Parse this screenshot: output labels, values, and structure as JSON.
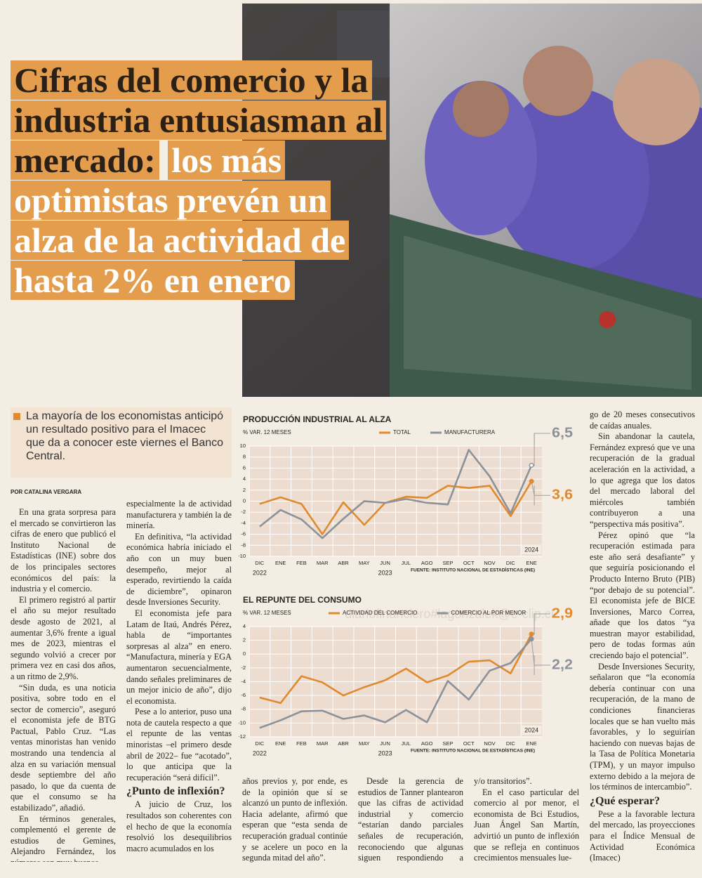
{
  "headline": {
    "part1": "Cifras del comercio y la industria entusiasman al mercado:",
    "part2": "los más optimistas prevén un alza de la actividad de hasta 2% en enero"
  },
  "lead": "La mayoría de los economistas anticipó un resultado positivo para el Imacec que da a conocer este viernes el Banco Central.",
  "byline": "POR CATALINA VERGARA",
  "watermark": "diariofinanciero#lagonzalek@e-clip.cl",
  "article": {
    "columns": [
      [
        {
          "p": "En una grata sorpresa para el mercado se convirtieron las cifras de enero que publicó el Instituto Nacional de Estadísticas (INE) sobre dos de los principales sectores económicos del país: la industria y el comercio."
        },
        {
          "p": "El primero registró al partir el año su mejor resultado desde agosto de 2021, al aumentar 3,6% frente a igual mes de 2023, mientras el segundo volvió a crecer por primera vez en casi dos años, a un ritmo de 2,9%."
        },
        {
          "p": "“Sin duda, es una noticia positiva, sobre todo en el sector de comercio”, aseguró el economista jefe de BTG Pactual, Pablo Cruz. “Las ventas minoristas han venido mostrando una tendencia al alza en su variación mensual desde septiembre del año pasado, lo que da cuenta de que el consumo se ha estabilizado”, añadió."
        },
        {
          "p": "En términos generales, complementó el gerente de estudios de Gemines, Alejandro Fernández, los números son muy buenos,"
        }
      ],
      [
        {
          "c": "especialmente la de actividad manufacturera y también la de minería."
        },
        {
          "p": "En definitiva, “la actividad económica habría iniciado el año con un muy buen desempeño, mejor al esperado, revirtiendo la caída de diciembre”, opinaron desde Inversiones Security."
        },
        {
          "p": "El economista jefe para Latam de Itaú, Andrés Pérez, habla de “importantes sorpresas al alza” en enero. “Manufactura, minería y EGA aumentaron secuencialmente, dando señales preliminares de un mejor inicio de año”, dijo el economista."
        },
        {
          "p": "Pese a lo anterior, puso una nota de cautela respecto a que el repunte de las ventas minoristas –el primero desde abril de 2022– fue “acotado”, lo que anticipa que la recuperación “será difícil”."
        },
        {
          "h": "¿Punto de inflexión?"
        },
        {
          "p": "A juicio de Cruz, los resultados son coherentes con el hecho de que la economía resolvió los desequilibrios macro acumulados en los"
        }
      ],
      [
        {
          "c": "años previos y, por ende, es de la opinión que sí se alcanzó un punto de inflexión. Hacia adelante, afirmó que esperan que “esta senda de recuperación gradual continúe y se acelere un poco en la segunda mitad del año”."
        }
      ],
      [
        {
          "p": "Desde la gerencia de estudios de Tanner plantearon que las cifras de actividad industrial y comercio “estarían dando parciales señales de recuperación, reconociendo que algunas siguen respondiendo a factores estacionales"
        }
      ],
      [
        {
          "c": "y/o transitorios”."
        },
        {
          "p": "En el caso particular del comercio al por menor, el economista de Bci Estudios, Juan Ángel San Martín, advirtió un punto de inflexión que se refleja en continuos crecimientos mensuales lue-"
        }
      ],
      [
        {
          "c": "go de 20 meses consecutivos de caídas anuales."
        },
        {
          "p": "Sin abandonar la cautela, Fernández expresó que ve una recuperación de la gradual aceleración en la actividad, a lo que agrega que los datos del mercado laboral del miércoles también contribuyeron a una “perspectiva más positiva”."
        },
        {
          "p": "Pérez opinó que “la recuperación estimada para este año será desafiante” y que seguiría posicionando el Producto Interno Bruto (PIB) “por debajo de su potencial”. El economista jefe de BICE Inversiones, Marco Correa, añade que los datos “ya muestran mayor estabilidad, pero de todas formas aún creciendo bajo el potencial”."
        },
        {
          "p": "Desde Inversiones Security, señalaron que “la economía debería continuar con una recuperación, de la mano de condiciones financieras locales que se han vuelto más favorables, y lo seguirían haciendo con nuevas bajas de la Tasa de Política Monetaria (TPM), y un mayor impulso externo debido a la mejora de los términos de intercambio”."
        },
        {
          "h": "¿Qué esperar?"
        },
        {
          "p": "Pese a la favorable lectura del mercado, las proyecciones para el Índice Mensual de Actividad Económica (Imacec)"
        }
      ]
    ]
  },
  "chart_data": [
    {
      "type": "line",
      "title": "PRODUCCIÓN INDUSTRIAL AL ALZA",
      "subtitle": "% VAR. 12 MESES",
      "categories": [
        "DIC",
        "ENE",
        "FEB",
        "MAR",
        "ABR",
        "MAY",
        "JUN",
        "JUL",
        "AGO",
        "SEP",
        "OCT",
        "NOV",
        "DIC",
        "ENE"
      ],
      "years": [
        "2022",
        "2023",
        "2024"
      ],
      "series": [
        {
          "name": "TOTAL",
          "color": "#e08a2e",
          "values": [
            -0.5,
            0.7,
            -0.5,
            -6,
            -0.2,
            -4.3,
            -0.3,
            0.8,
            0.6,
            2.8,
            2.4,
            2.8,
            -2.7,
            3.6
          ],
          "value_labels": [
            null,
            null,
            null,
            null,
            null,
            null,
            null,
            null,
            null,
            null,
            null,
            null,
            null,
            "3,6"
          ]
        },
        {
          "name": "MANUFACTURERA",
          "color": "#8c9299",
          "values": [
            -4.6,
            -1.6,
            -3.3,
            -6.7,
            -3.2,
            0,
            -0.3,
            0.4,
            -0.3,
            -0.6,
            9.3,
            4.5,
            -2.2,
            6.5
          ],
          "value_labels": [
            null,
            null,
            null,
            null,
            null,
            null,
            null,
            null,
            null,
            null,
            null,
            null,
            null,
            "6,5"
          ]
        }
      ],
      "ylim": [
        -10,
        10
      ],
      "yticks": [
        -10,
        -8,
        -6,
        -4,
        -2,
        0,
        2,
        4,
        6,
        8,
        10
      ],
      "grid": true,
      "source": "FUENTE: INSTITUTO NACIONAL DE ESTADÍSTICAS (INE)"
    },
    {
      "type": "line",
      "title": "EL REPUNTE DEL CONSUMO",
      "subtitle": "% VAR. 12 MESES",
      "categories": [
        "DIC",
        "ENE",
        "FEB",
        "MAR",
        "ABR",
        "MAY",
        "JUN",
        "JUL",
        "AGO",
        "SEP",
        "OCT",
        "NOV",
        "DIC",
        "ENE"
      ],
      "years": [
        "2022",
        "2023",
        "2024"
      ],
      "series": [
        {
          "name": "ACTIVIDAD DEL COMERCIO",
          "color": "#e08a2e",
          "values": [
            -6.3,
            -7.1,
            -3.2,
            -4.1,
            -6,
            -4.8,
            -3.8,
            -2.1,
            -4.1,
            -3.1,
            -1.1,
            -0.9,
            -2.8,
            2.9
          ],
          "value_labels": [
            null,
            null,
            null,
            null,
            null,
            null,
            null,
            null,
            null,
            null,
            null,
            null,
            null,
            "2,9"
          ]
        },
        {
          "name": "COMERCIO AL POR MENOR",
          "color": "#8c9299",
          "values": [
            -10.7,
            -9.6,
            -8.3,
            -8.2,
            -9.4,
            -8.9,
            -9.9,
            -8.1,
            -9.9,
            -3.9,
            -6.6,
            -2.4,
            -1.3,
            2.2
          ],
          "value_labels": [
            null,
            null,
            null,
            null,
            null,
            null,
            null,
            null,
            null,
            null,
            null,
            null,
            null,
            "2,2"
          ]
        }
      ],
      "ylim": [
        -12,
        4
      ],
      "yticks": [
        -12,
        -10,
        -8,
        -6,
        -4,
        -2,
        0,
        2,
        4
      ],
      "grid": true,
      "source": "FUENTE: INSTITUTO NACIONAL DE ESTADÍSTICAS (INE)"
    }
  ]
}
